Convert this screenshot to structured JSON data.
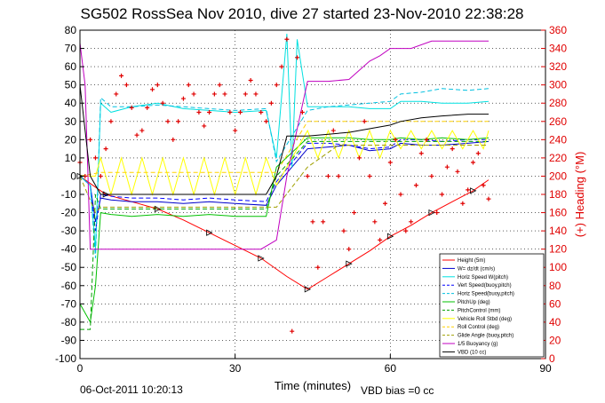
{
  "chart_data": {
    "type": "line",
    "title": "SG502 RossSea Nov 2010, dive 27 started 23-Nov-2010 22:38:28",
    "xlabel": "Time (minutes)",
    "ylabel": "",
    "ylabel_right": "(+) Heading (°M)",
    "xlim": [
      0,
      90
    ],
    "ylim": [
      -100,
      80
    ],
    "ylim_right": [
      0,
      360
    ],
    "xticks": [
      "0",
      "30",
      "60",
      "90"
    ],
    "yticks": [
      "80",
      "70",
      "60",
      "50",
      "40",
      "30",
      "20",
      "10",
      "0",
      "-10",
      "-20",
      "-30",
      "-40",
      "-50",
      "-60",
      "-70",
      "-80",
      "-90",
      "-100"
    ],
    "yticks_right": [
      "360",
      "340",
      "320",
      "300",
      "280",
      "260",
      "240",
      "220",
      "200",
      "180",
      "160",
      "140",
      "120",
      "100",
      "80",
      "60",
      "40",
      "20",
      "0"
    ],
    "grid": true,
    "legend_position": "bottom-right",
    "footer_date": "06-Oct-2011 10:20:13",
    "footer_vbd": "VBD bias =0 cc",
    "series": [
      {
        "name": "Height (5m)",
        "color": "#ff0000",
        "style": "solid",
        "x": [
          0,
          2,
          5,
          10,
          15,
          20,
          25,
          30,
          35,
          40,
          44,
          48,
          52,
          56,
          60,
          64,
          68,
          72,
          76,
          79
        ],
        "y": [
          0,
          -4,
          -10,
          -14,
          -18,
          -24,
          -31,
          -38,
          -45,
          -55,
          -62,
          -55,
          -48,
          -41,
          -33,
          -27,
          -20,
          -14,
          -8,
          -2
        ]
      },
      {
        "name": "W= dz/dt (cm/s)",
        "color": "#0000cc",
        "style": "solid",
        "x": [
          0,
          2,
          3,
          4,
          6,
          10,
          15,
          20,
          25,
          30,
          36,
          38,
          44,
          48,
          52,
          56,
          60,
          62,
          66,
          70,
          75,
          79
        ],
        "y": [
          0,
          -5,
          -25,
          -12,
          -13,
          -14,
          -14,
          -15,
          -14,
          -15,
          -16,
          -5,
          15,
          16,
          17,
          14,
          15,
          18,
          17,
          17,
          18,
          19
        ]
      },
      {
        "name": "Horiz Speed W(pitch)",
        "color": "#00e0e0",
        "style": "solid",
        "x": [
          0,
          2,
          3,
          4,
          6,
          10,
          15,
          20,
          25,
          30,
          36,
          38,
          40,
          41,
          42,
          44,
          48,
          52,
          56,
          60,
          62,
          66,
          70,
          75,
          79
        ],
        "y": [
          0,
          -5,
          -40,
          40,
          35,
          38,
          40,
          37,
          36,
          35,
          36,
          10,
          78,
          5,
          75,
          38,
          38,
          38,
          37,
          37,
          41,
          41,
          40,
          40,
          41
        ]
      },
      {
        "name": "Vert Speed(buoy,pitch)",
        "color": "#0000ff",
        "style": "dashed",
        "x": [
          0,
          2,
          3,
          4,
          6,
          10,
          15,
          20,
          25,
          30,
          36,
          38,
          44,
          48,
          52,
          56,
          60,
          62,
          66,
          70,
          75,
          79
        ],
        "y": [
          0,
          -5,
          -30,
          -10,
          -11,
          -12,
          -12,
          -13,
          -12,
          -13,
          -14,
          -3,
          18,
          18,
          17,
          15,
          16,
          20,
          20,
          19,
          20,
          20
        ]
      },
      {
        "name": "Horiz Speed(buoy,pitch)",
        "color": "#00c0e0",
        "style": "dashed",
        "x": [
          0,
          2,
          3,
          4,
          6,
          10,
          15,
          20,
          25,
          30,
          36,
          38,
          44,
          48,
          52,
          56,
          60,
          62,
          66,
          70,
          75,
          79
        ],
        "y": [
          0,
          -5,
          -45,
          43,
          38,
          38,
          39,
          38,
          37,
          36,
          37,
          8,
          36,
          38,
          39,
          40,
          41,
          45,
          46,
          48,
          47,
          48
        ]
      },
      {
        "name": "PitchUp (deg)",
        "color": "#00c000",
        "style": "solid",
        "x": [
          0,
          2,
          3,
          4,
          6,
          10,
          15,
          20,
          25,
          30,
          36,
          38,
          44,
          48,
          52,
          56,
          60,
          62,
          66,
          70,
          75,
          79
        ],
        "y": [
          -70,
          -80,
          -60,
          -20,
          -21,
          -22,
          -21,
          -22,
          -21,
          -22,
          -22,
          5,
          21,
          21,
          21,
          20,
          20,
          21,
          20,
          21,
          20,
          21
        ]
      },
      {
        "name": "PitchControl (mm)",
        "color": "#00a000",
        "style": "dashed",
        "x": [
          0,
          2,
          3,
          4,
          6,
          10,
          15,
          20,
          25,
          30,
          36,
          38,
          44,
          48,
          52,
          56,
          60,
          62,
          66,
          70,
          75,
          79
        ],
        "y": [
          -84,
          -84,
          -10,
          -18,
          -18,
          -18,
          -18,
          -18,
          -18,
          -18,
          -18,
          0,
          19,
          19,
          19,
          19,
          19,
          19,
          19,
          19,
          19,
          19
        ]
      },
      {
        "name": "Vehicle Roll Stbd (deg)",
        "color": "#ffff00",
        "style": "solid",
        "x": [
          0,
          3,
          4,
          6,
          8,
          10,
          12,
          14,
          16,
          18,
          20,
          22,
          24,
          26,
          28,
          30,
          32,
          34,
          36,
          38,
          44,
          46,
          48,
          50,
          52,
          54,
          56,
          58,
          60,
          62,
          64,
          66,
          68,
          70,
          72,
          74,
          76,
          78,
          79
        ],
        "y": [
          0,
          0,
          10,
          -10,
          10,
          -10,
          10,
          -10,
          10,
          -10,
          10,
          -10,
          10,
          -10,
          10,
          -10,
          10,
          -10,
          10,
          -5,
          25,
          10,
          25,
          10,
          25,
          10,
          25,
          10,
          25,
          15,
          25,
          15,
          25,
          15,
          25,
          15,
          25,
          15,
          25
        ]
      },
      {
        "name": "Roll Control (deg)",
        "color": "#ffd000",
        "style": "dashed",
        "x": [
          0,
          4,
          10,
          20,
          30,
          38,
          44,
          50,
          60,
          70,
          79
        ],
        "y": [
          0,
          2,
          2,
          2,
          2,
          2,
          30,
          30,
          30,
          30,
          30
        ]
      },
      {
        "name": "Glide Angle (buoy,pitch)",
        "color": "#a0a000",
        "style": "dashed",
        "x": [
          0,
          3,
          4,
          10,
          20,
          30,
          38,
          44,
          50,
          60,
          70,
          79
        ],
        "y": [
          0,
          -20,
          -17,
          -17,
          -17,
          -17,
          -17,
          5,
          17,
          17,
          17,
          17
        ]
      },
      {
        "name": "1/5 Buoyancy (g)",
        "color": "#c000c0",
        "style": "solid",
        "x": [
          0,
          1,
          2,
          4,
          10,
          20,
          30,
          35,
          38,
          40,
          44,
          48,
          52,
          56,
          58,
          60,
          64,
          68,
          72,
          75,
          79
        ],
        "y": [
          73,
          50,
          -40,
          -40,
          -40,
          -40,
          -40,
          -40,
          -35,
          0,
          52,
          52,
          53,
          63,
          66,
          70,
          70,
          74,
          74,
          74,
          74
        ]
      },
      {
        "name": "VBD (10 cc)",
        "color": "#000000",
        "style": "solid",
        "x": [
          0,
          2,
          4,
          10,
          20,
          30,
          36,
          38,
          40,
          44,
          48,
          52,
          56,
          60,
          62,
          66,
          70,
          75,
          79
        ],
        "y": [
          50,
          0,
          -10,
          -10,
          -10,
          -10,
          -10,
          0,
          22,
          22,
          23,
          24,
          26,
          28,
          30,
          32,
          33,
          34,
          34
        ]
      }
    ],
    "heading_series": {
      "name": "(+) Heading",
      "color": "#e00000",
      "axis": "right",
      "x": [
        0,
        1,
        2,
        3,
        4,
        5,
        6,
        7,
        8,
        9,
        10,
        11,
        12,
        13,
        14,
        15,
        16,
        17,
        18,
        19,
        20,
        21,
        22,
        23,
        24,
        25,
        26,
        27,
        28,
        29,
        30,
        31,
        32,
        33,
        34,
        35,
        36,
        37,
        38,
        39,
        40,
        41,
        42,
        43,
        44,
        45,
        46,
        47,
        48,
        49,
        50,
        51,
        52,
        53,
        54,
        55,
        56,
        57,
        58,
        59,
        60,
        61,
        62,
        63,
        64,
        65,
        66,
        67,
        68,
        69,
        70,
        71,
        72,
        73,
        74,
        75,
        76,
        77,
        78,
        79
      ],
      "y": [
        215,
        200,
        240,
        220,
        200,
        230,
        260,
        290,
        310,
        300,
        275,
        245,
        250,
        275,
        295,
        300,
        280,
        260,
        240,
        260,
        285,
        300,
        290,
        270,
        255,
        270,
        290,
        300,
        290,
        270,
        250,
        270,
        290,
        305,
        290,
        270,
        260,
        280,
        300,
        320,
        350,
        30,
        330,
        270,
        200,
        150,
        100,
        150,
        200,
        250,
        200,
        140,
        120,
        160,
        220,
        260,
        200,
        150,
        130,
        170,
        215,
        240,
        180,
        140,
        150,
        190,
        225,
        240,
        200,
        160,
        180,
        210,
        230,
        205,
        170,
        185,
        215,
        225,
        190,
        175
      ]
    }
  }
}
